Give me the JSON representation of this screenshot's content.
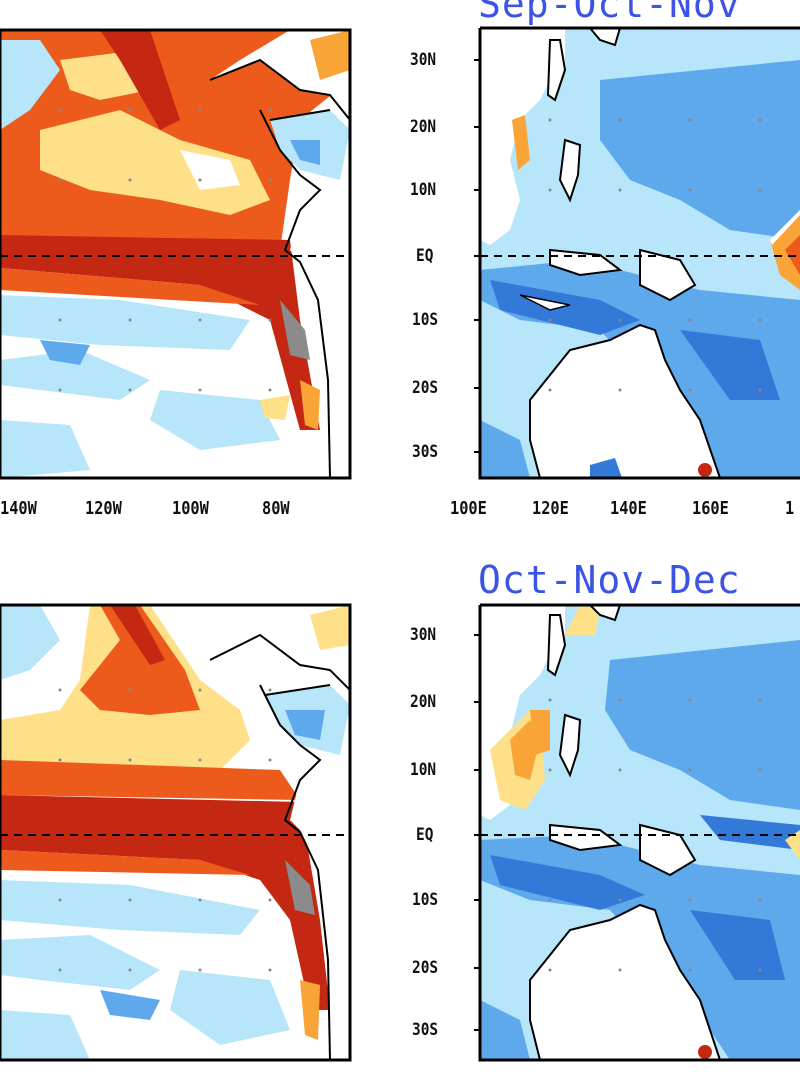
{
  "titles": {
    "top_right": "Sep-Oct-Nov",
    "bottom_right": "Oct-Nov-Dec"
  },
  "lat_labels": [
    "30N",
    "20N",
    "10N",
    "EQ",
    "10S",
    "20S",
    "30S"
  ],
  "lon_labels_left": [
    "140W",
    "120W",
    "100W",
    "80W"
  ],
  "lon_labels_right": [
    "100E",
    "120E",
    "140E",
    "160E",
    "1"
  ],
  "colors": {
    "dark_red": "#c42812",
    "orange_red": "#ec5b1c",
    "light_orange": "#f9a437",
    "yellow": "#fde087",
    "light_blue": "#b7e5fa",
    "mid_blue": "#5ea9ec",
    "deep_blue": "#3279d8",
    "land_gray": "#8b8b8b"
  }
}
